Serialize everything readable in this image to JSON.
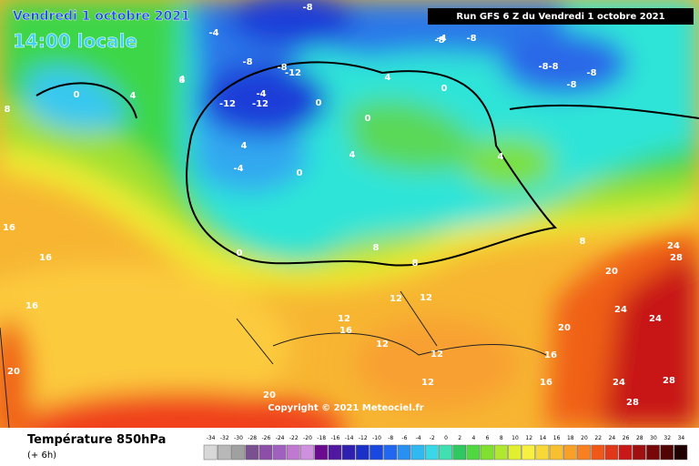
{
  "header": {
    "date": "Vendredi 1 octobre 2021",
    "time": "14:00 locale",
    "run": "Run GFS 6 Z du Vendredi 1 octobre 2021"
  },
  "copyright": "Copyright © 2021 Meteociel.fr",
  "footer": {
    "title": "Température 850hPa",
    "subtitle": "(+ 6h)"
  },
  "scale": [
    -34,
    -32,
    -30,
    -28,
    -26,
    -24,
    -22,
    -20,
    -18,
    -16,
    -14,
    -12,
    -10,
    -8,
    -6,
    -4,
    -2,
    0,
    2,
    4,
    6,
    8,
    10,
    12,
    14,
    16,
    18,
    20,
    22,
    24,
    26,
    28,
    30,
    32,
    34
  ],
  "contour_labels": [
    "-8",
    "-8",
    "-4",
    "-8",
    "-8",
    "-12",
    "-12",
    "-12",
    "-8",
    "-8",
    "-8",
    "-8",
    "-8",
    "-4",
    "-4",
    "-4",
    "0",
    "0",
    "0",
    "0",
    "0",
    "0",
    "4",
    "4",
    "4",
    "4",
    "4",
    "4",
    "8",
    "8",
    "8",
    "8",
    "8",
    "12",
    "12",
    "12",
    "12",
    "12",
    "12",
    "16",
    "16",
    "16",
    "16",
    "16",
    "16",
    "20",
    "20",
    "20",
    "20",
    "24",
    "24",
    "24",
    "24",
    "28",
    "28",
    "28"
  ]
}
